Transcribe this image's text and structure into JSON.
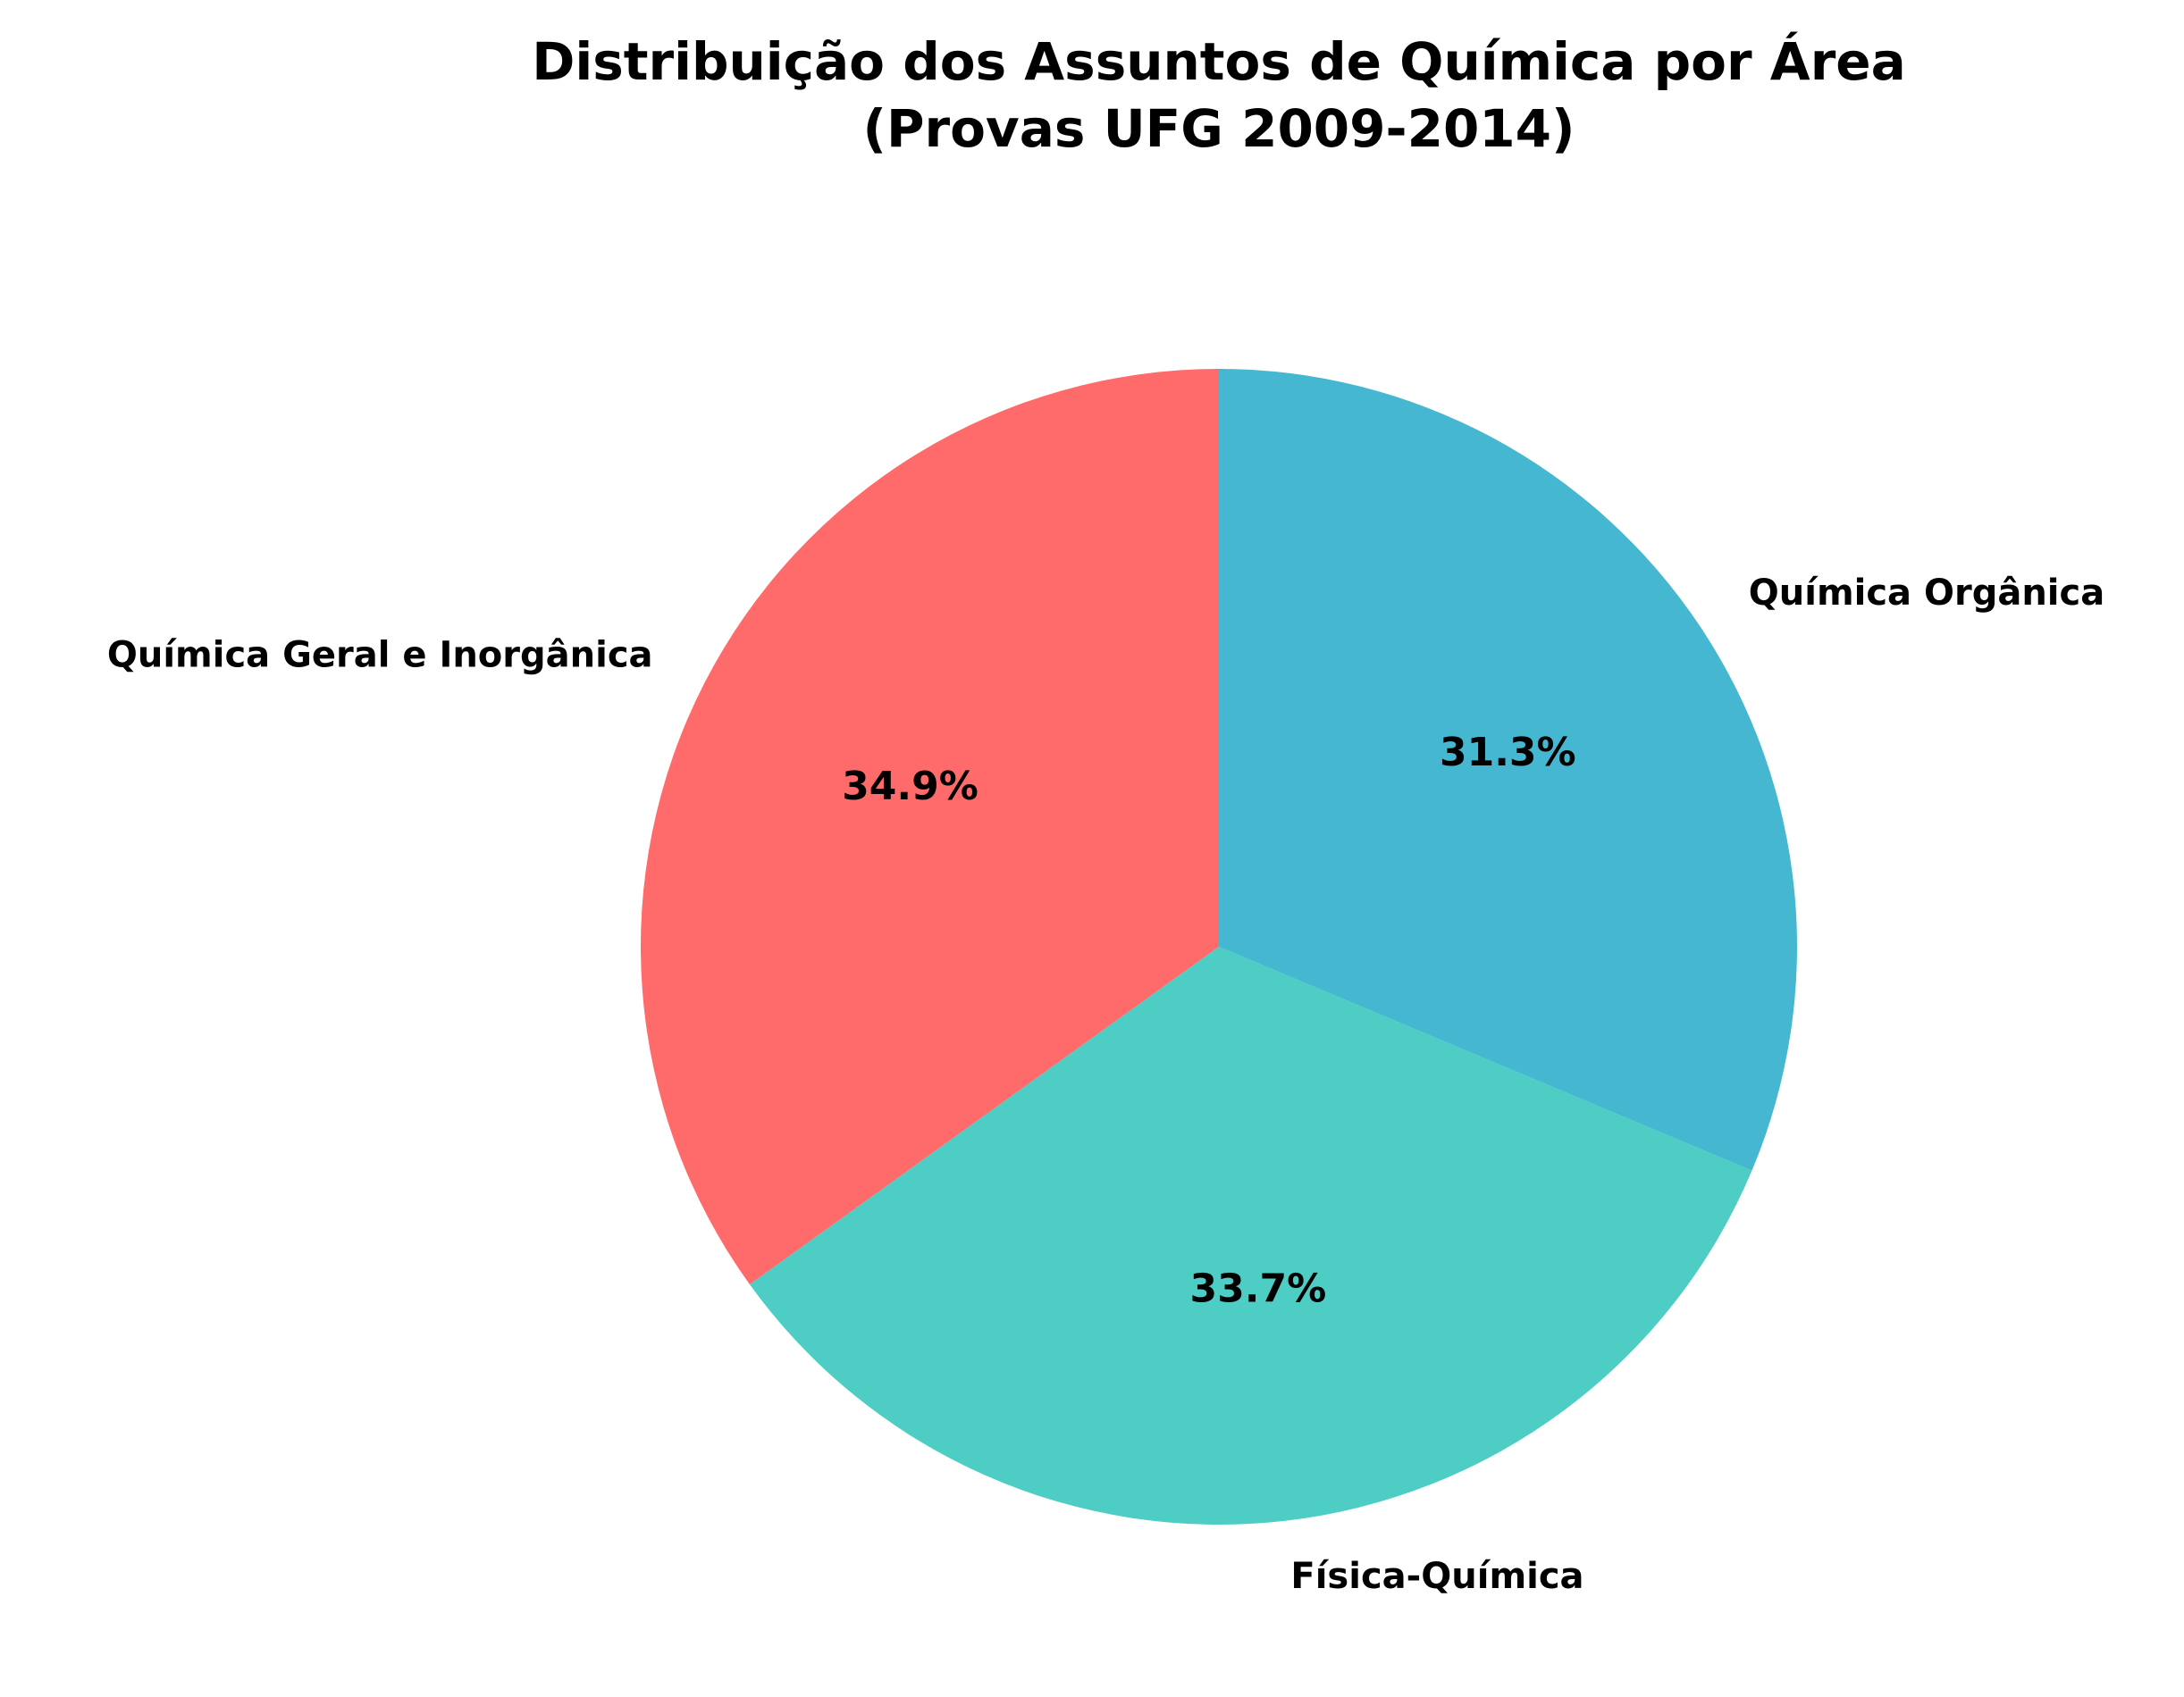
{
  "chart_data": {
    "type": "pie",
    "title": [
      "Distribuição dos Assuntos de Química por Área",
      "(Provas UFG 2009-2014)"
    ],
    "categories": [
      "Química Geral e Inorgânica",
      "Física-Química",
      "Química Orgânica"
    ],
    "values": [
      34.9,
      33.7,
      31.3
    ],
    "value_labels": [
      "34.9%",
      "33.7%",
      "31.3%"
    ],
    "colors": [
      "#FF6B6B",
      "#4ECDC4",
      "#45B7D1"
    ]
  }
}
